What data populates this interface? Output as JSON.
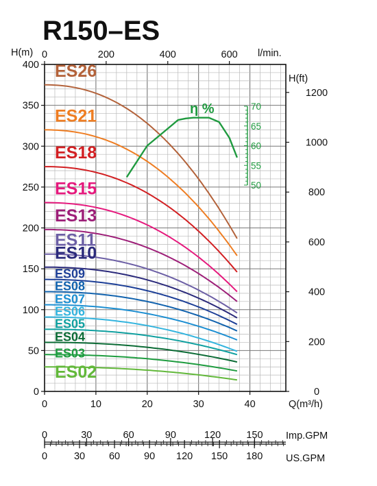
{
  "chart_data": {
    "type": "line",
    "title": "R150–ES",
    "x": {
      "label": "Q(m³/h)",
      "range": [
        0,
        47
      ],
      "ticks": [
        "0",
        "10",
        "20",
        "30",
        "40"
      ]
    },
    "y_left": {
      "label": "H(m)",
      "range": [
        0,
        400
      ],
      "ticks": [
        "0",
        "50",
        "100",
        "150",
        "200",
        "250",
        "300",
        "350",
        "400"
      ]
    },
    "y_right": {
      "label": "H(ft)",
      "ticks": [
        "0",
        "200",
        "400",
        "600",
        "800",
        "1000",
        "1200"
      ]
    },
    "x_top": {
      "label": "l/min.",
      "ticks": [
        "0",
        "200",
        "400",
        "600"
      ]
    },
    "imp_gpm": {
      "label": "Imp.GPM",
      "ticks": [
        "0",
        "30",
        "60",
        "90",
        "120",
        "150"
      ]
    },
    "us_gpm": {
      "label": "US.GPM",
      "ticks": [
        "0",
        "30",
        "60",
        "90",
        "120",
        "150",
        "180"
      ]
    },
    "efficiency": {
      "label": "η %",
      "ticks": [
        "50",
        "55",
        "60",
        "65",
        "70"
      ],
      "range": [
        50,
        70
      ],
      "color": "#1f9a3f",
      "points": [
        [
          16,
          52
        ],
        [
          20,
          60
        ],
        [
          22.5,
          62.7
        ],
        [
          26,
          66.5
        ],
        [
          27.5,
          66.9
        ],
        [
          29,
          67.1
        ],
        [
          32,
          67.1
        ],
        [
          34,
          66
        ],
        [
          36,
          62
        ],
        [
          37.5,
          57
        ]
      ]
    },
    "grid": true,
    "series": [
      {
        "name": "ES26",
        "color": "#b3623a",
        "shutoff": 375,
        "end": 187
      },
      {
        "name": "ES21",
        "color": "#ee7d22",
        "shutoff": 320,
        "end": 166
      },
      {
        "name": "ES18",
        "color": "#d21f22",
        "shutoff": 275,
        "end": 146
      },
      {
        "name": "ES15",
        "color": "#e5197d",
        "shutoff": 231,
        "end": 122
      },
      {
        "name": "ES13",
        "color": "#9d1e78",
        "shutoff": 198,
        "end": 110
      },
      {
        "name": "ES11",
        "color": "#6c5fa5",
        "shutoff": 168,
        "end": 96
      },
      {
        "name": "ES10",
        "color": "#2b2a7b",
        "shutoff": 152,
        "end": 90
      },
      {
        "name": "ES09",
        "color": "#1d3f97",
        "shutoff": 137,
        "end": 82
      },
      {
        "name": "ES08",
        "color": "#1263ae",
        "shutoff": 122,
        "end": 74
      },
      {
        "name": "ES07",
        "color": "#1d8fd2",
        "shutoff": 106,
        "end": 63
      },
      {
        "name": "ES06",
        "color": "#33b4de",
        "shutoff": 91,
        "end": 49
      },
      {
        "name": "ES05",
        "color": "#10a0a0",
        "shutoff": 76,
        "end": 45
      },
      {
        "name": "ES04",
        "color": "#0b6b35",
        "shutoff": 60,
        "end": 36
      },
      {
        "name": "ES03",
        "color": "#1e9c3f",
        "shutoff": 45,
        "end": 25
      },
      {
        "name": "ES02",
        "color": "#62b83a",
        "shutoff": 30,
        "end": 14
      }
    ]
  }
}
